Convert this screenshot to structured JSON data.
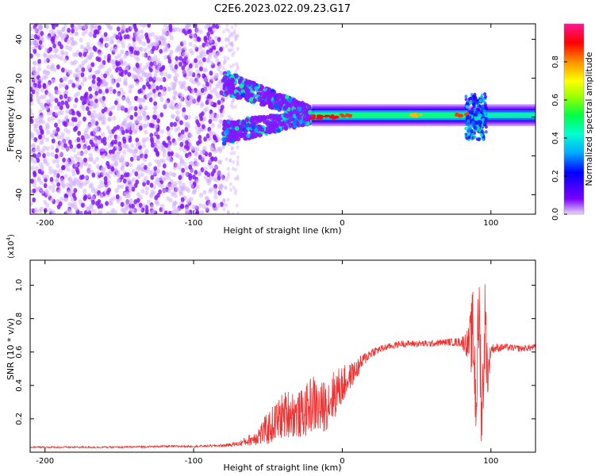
{
  "title": "C2E6.2023.022.09.23.G17",
  "chart_data": [
    {
      "type": "heatmap",
      "xlabel": "Height of straight line (km)",
      "ylabel": "Frequency (Hz)",
      "xlim": [
        -210,
        130
      ],
      "ylim": [
        -50,
        48
      ],
      "x_ticks": [
        -200,
        -100,
        0,
        100
      ],
      "x_tick_labels": [
        "-200",
        "-100",
        "0",
        "100"
      ],
      "y_ticks": [
        -40,
        -20,
        0,
        20,
        40
      ],
      "y_tick_labels": [
        "-40",
        "-20",
        "0",
        "20",
        "40"
      ],
      "grid": false,
      "colorbar": {
        "label": "Normalized spectral amplitude",
        "range": [
          0,
          1
        ],
        "ticks": [
          0,
          0.2,
          0.4,
          0.6,
          0.8
        ],
        "tick_labels": [
          "0.0",
          "0.2",
          "0.4",
          "0.6",
          "0.8"
        ],
        "colormap": [
          "#e8d8ff",
          "#7a00ff",
          "#0000ff",
          "#00c8ff",
          "#00ff80",
          "#00ff00",
          "#ffff00",
          "#ffa000",
          "#ff0000",
          "#ff1493"
        ]
      },
      "regions": [
        {
          "x": [
            -210,
            -80
          ],
          "freq_range": [
            -50,
            48
          ],
          "amplitude": 0.1,
          "description_type": "scattered noise"
        },
        {
          "x": [
            -80,
            -20
          ],
          "freq_center": [
            18,
            -8
          ],
          "amplitude": 0.3
        },
        {
          "x": [
            -20,
            85
          ],
          "freq_center": 1,
          "amplitude": 0.45
        },
        {
          "x": [
            85,
            95
          ],
          "freq_center": 0,
          "amplitude": 0.35
        },
        {
          "x": [
            95,
            130
          ],
          "freq_center": 1,
          "amplitude": 0.4
        }
      ],
      "hot_spots": [
        {
          "x": -17,
          "y": 0,
          "amplitude": 0.9
        },
        {
          "x": -7,
          "y": 0,
          "amplitude": 0.9
        },
        {
          "x": 3,
          "y": 1,
          "amplitude": 0.85
        },
        {
          "x": 50,
          "y": 1,
          "amplitude": 0.75
        },
        {
          "x": 80,
          "y": 1,
          "amplitude": 0.85
        }
      ]
    },
    {
      "type": "line",
      "xlabel": "Height of straight line (km)",
      "ylabel": "SNR (10 * v/v)",
      "y_multiplier_label": "(x10",
      "y_multiplier_exp": "4",
      "y_multiplier_close": ")",
      "xlim": [
        -210,
        130
      ],
      "ylim": [
        0,
        1.15
      ],
      "x_ticks": [
        -200,
        -100,
        0,
        100
      ],
      "x_tick_labels": [
        "-200",
        "-100",
        "0",
        "100"
      ],
      "y_ticks": [
        0.2,
        0.4,
        0.6,
        0.8,
        1.0
      ],
      "y_tick_labels": [
        "0.2",
        "0.4",
        "0.6",
        "0.8",
        "1.0"
      ],
      "color": "#ee3333",
      "grid": false,
      "series": [
        {
          "x": [
            -210,
            -180,
            -150,
            -120,
            -100,
            -80,
            -70,
            -60,
            -50,
            -45,
            -40,
            -35,
            -30,
            -25,
            -20,
            -15,
            -10,
            -5,
            0,
            5,
            10,
            15,
            20,
            30,
            40,
            50,
            60,
            70,
            80,
            85,
            88,
            90,
            92,
            94,
            96,
            98,
            100,
            110,
            120,
            130
          ],
          "values": [
            0.03,
            0.03,
            0.03,
            0.035,
            0.035,
            0.04,
            0.05,
            0.08,
            0.14,
            0.18,
            0.22,
            0.24,
            0.22,
            0.24,
            0.3,
            0.25,
            0.3,
            0.35,
            0.4,
            0.45,
            0.5,
            0.56,
            0.6,
            0.63,
            0.65,
            0.65,
            0.65,
            0.66,
            0.66,
            0.65,
            0.7,
            0.3,
            0.85,
            0.2,
            0.8,
            0.45,
            0.62,
            0.63,
            0.62,
            0.63
          ],
          "noise_amplitude": [
            0.005,
            0.005,
            0.005,
            0.006,
            0.006,
            0.008,
            0.015,
            0.04,
            0.1,
            0.12,
            0.14,
            0.15,
            0.14,
            0.15,
            0.18,
            0.16,
            0.16,
            0.15,
            0.12,
            0.08,
            0.06,
            0.04,
            0.03,
            0.02,
            0.02,
            0.02,
            0.02,
            0.02,
            0.03,
            0.1,
            0.3,
            0.3,
            0.3,
            0.3,
            0.25,
            0.15,
            0.03,
            0.02,
            0.02,
            0.02
          ]
        }
      ]
    }
  ]
}
